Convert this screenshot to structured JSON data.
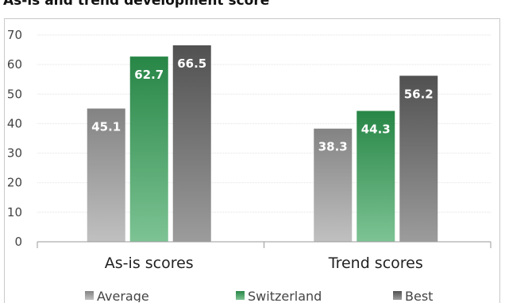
{
  "chart_data": {
    "type": "bar",
    "title": "As-is and trend development score",
    "categories": [
      "As-is scores",
      "Trend scores"
    ],
    "series": [
      {
        "name": "Average",
        "values": [
          45.1,
          38.3
        ],
        "color": "#9a9a9a"
      },
      {
        "name": "Switzerland",
        "values": [
          62.7,
          44.3
        ],
        "color": "#2e9e52"
      },
      {
        "name": "Best",
        "values": [
          66.5,
          56.2
        ],
        "color": "#5f5f5f"
      }
    ],
    "ylim": [
      0,
      70
    ],
    "yticks": [
      0,
      10,
      20,
      30,
      40,
      50,
      60,
      70
    ],
    "grid": true,
    "legend": "bottom",
    "data_labels": true
  }
}
